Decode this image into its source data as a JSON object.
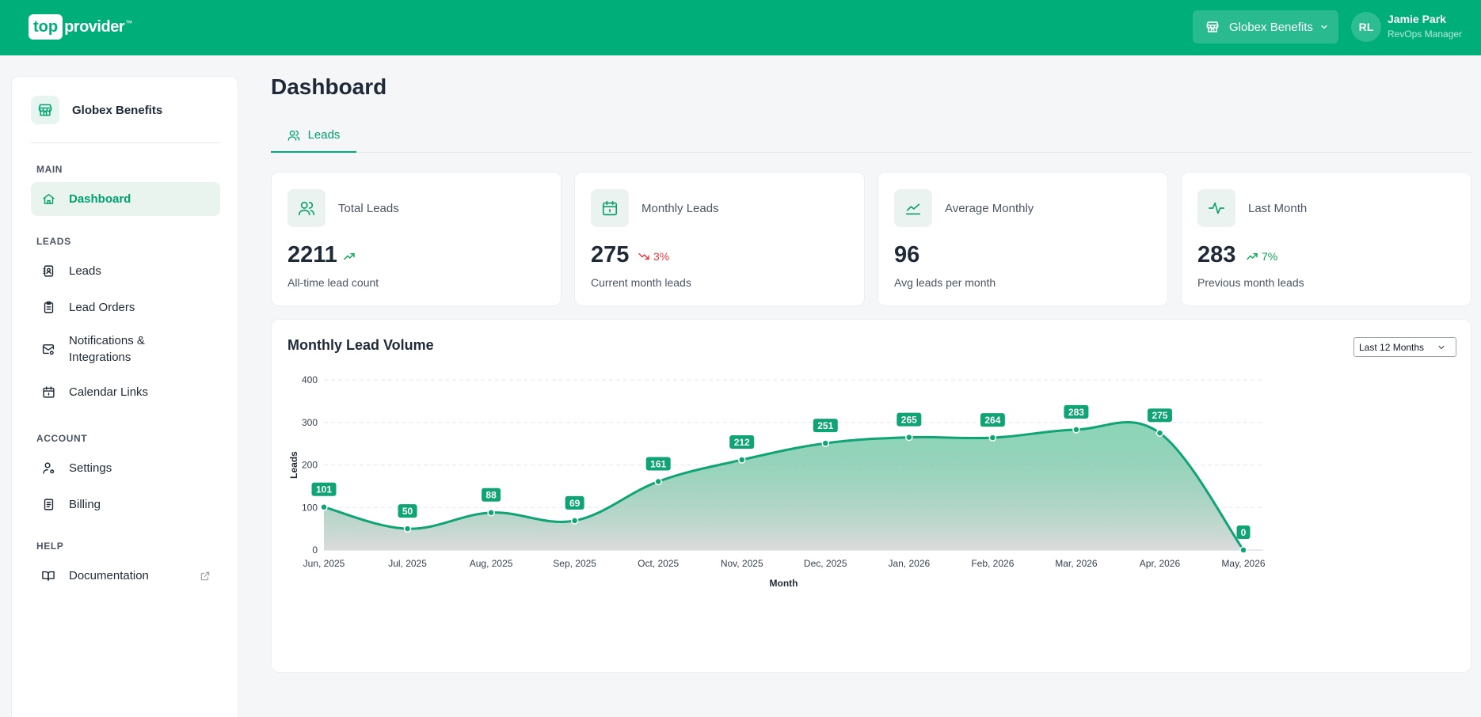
{
  "header": {
    "logo_box": "top",
    "logo_text": "provider",
    "logo_tm": "™",
    "org_name": "Globex Benefits",
    "avatar_initials": "RL",
    "user_name": "Jamie Park",
    "user_role": "RevOps Manager"
  },
  "sidebar": {
    "org_name": "Globex Benefits",
    "sections": {
      "main": "MAIN",
      "leads": "LEADS",
      "account": "ACCOUNT",
      "help": "HELP"
    },
    "items": {
      "dashboard": "Dashboard",
      "leads": "Leads",
      "lead_orders": "Lead Orders",
      "notifications": "Notifications & Integrations",
      "calendar_links": "Calendar Links",
      "settings": "Settings",
      "billing": "Billing",
      "documentation": "Documentation"
    }
  },
  "main": {
    "title": "Dashboard",
    "tabs": [
      {
        "label": "Leads"
      }
    ],
    "stats": [
      {
        "label": "Total Leads",
        "value": "2211",
        "trend": "up",
        "trend_pct": "",
        "sub": "All-time lead count",
        "icon": "users-icon"
      },
      {
        "label": "Monthly Leads",
        "value": "275",
        "trend": "down",
        "trend_pct": "3%",
        "sub": "Current month leads",
        "icon": "calendar-icon"
      },
      {
        "label": "Average Monthly",
        "value": "96",
        "trend": "",
        "trend_pct": "",
        "sub": "Avg leads per month",
        "icon": "line-chart-icon"
      },
      {
        "label": "Last Month",
        "value": "283",
        "trend": "up",
        "trend_pct": "7%",
        "sub": "Previous month leads",
        "icon": "activity-icon"
      }
    ],
    "chart_card": {
      "title": "Monthly Lead Volume",
      "range_select": "Last 12 Months"
    }
  },
  "colors": {
    "brand": "#00ae7a",
    "line": "#10a374",
    "trend_up": "#10a35a",
    "trend_down": "#e03e3e"
  },
  "chart_data": {
    "type": "area",
    "title": "Monthly Lead Volume",
    "xlabel": "Month",
    "ylabel": "Leads",
    "categories": [
      "Jun, 2025",
      "Jul, 2025",
      "Aug, 2025",
      "Sep, 2025",
      "Oct, 2025",
      "Nov, 2025",
      "Dec, 2025",
      "Jan, 2026",
      "Feb, 2026",
      "Mar, 2026",
      "Apr, 2026",
      "May, 2026"
    ],
    "values": [
      101,
      50,
      88,
      69,
      161,
      212,
      251,
      265,
      264,
      283,
      275,
      0
    ],
    "ylim": [
      0,
      400
    ],
    "yticks": [
      0,
      100,
      200,
      300,
      400
    ],
    "grid": true,
    "data_labels": true,
    "legend": "none"
  }
}
